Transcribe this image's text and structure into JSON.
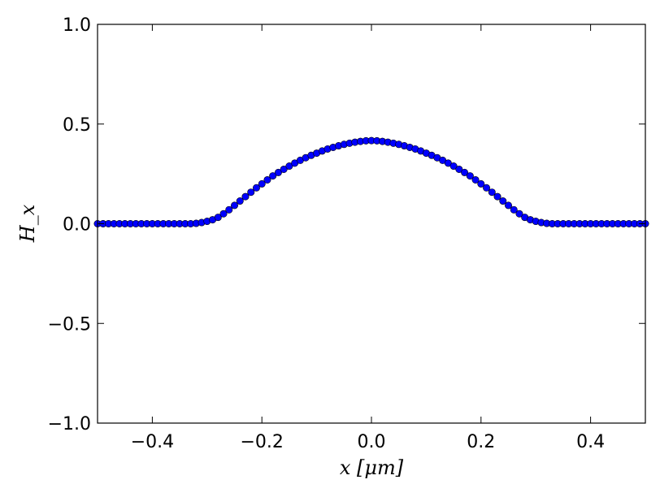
{
  "chart_data": {
    "type": "scatter",
    "title": "",
    "xlabel": "x [μm]",
    "ylabel": "H_x",
    "xlim": [
      -0.5,
      0.5
    ],
    "ylim": [
      -1.0,
      1.0
    ],
    "x_ticks": [
      -0.4,
      -0.2,
      0.0,
      0.2,
      0.4
    ],
    "x_tick_labels": [
      "−0.4",
      "−0.2",
      "0.0",
      "0.2",
      "0.4"
    ],
    "y_ticks": [
      -1.0,
      -0.5,
      0.0,
      0.5,
      1.0
    ],
    "y_tick_labels": [
      "−1.0",
      "−0.5",
      "0.0",
      "0.5",
      "1.0"
    ],
    "grid": false,
    "marker_color": "#0000ff",
    "series": [
      {
        "x": [
          -0.5,
          -0.49,
          -0.48,
          -0.47,
          -0.46,
          -0.45,
          -0.44,
          -0.43,
          -0.42,
          -0.41,
          -0.4,
          -0.39,
          -0.38,
          -0.37,
          -0.36,
          -0.35,
          -0.34,
          -0.33,
          -0.32,
          -0.31,
          -0.3,
          -0.29,
          -0.28,
          -0.27,
          -0.26,
          -0.25,
          -0.24,
          -0.23,
          -0.22,
          -0.21,
          -0.2,
          -0.19,
          -0.18,
          -0.17,
          -0.16,
          -0.15,
          -0.14,
          -0.13,
          -0.12,
          -0.11,
          -0.1,
          -0.09,
          -0.08,
          -0.07,
          -0.06,
          -0.05,
          -0.04,
          -0.03,
          -0.02,
          -0.01,
          0.0,
          0.01,
          0.02,
          0.03,
          0.04,
          0.05,
          0.06,
          0.07,
          0.08,
          0.09,
          0.1,
          0.11,
          0.12,
          0.13,
          0.14,
          0.15,
          0.16,
          0.17,
          0.18,
          0.19,
          0.2,
          0.21,
          0.22,
          0.23,
          0.24,
          0.25,
          0.26,
          0.27,
          0.28,
          0.29,
          0.3,
          0.31,
          0.32,
          0.33,
          0.34,
          0.35,
          0.36,
          0.37,
          0.38,
          0.39,
          0.4,
          0.41,
          0.42,
          0.43,
          0.44,
          0.45,
          0.46,
          0.47,
          0.48,
          0.49,
          0.5
        ],
        "y": [
          0,
          0,
          0,
          0,
          0,
          0,
          0,
          0,
          0,
          0,
          0,
          0,
          0,
          0,
          0,
          0,
          0,
          0,
          0.002,
          0.006,
          0.012,
          0.02,
          0.032,
          0.05,
          0.07,
          0.092,
          0.114,
          0.136,
          0.158,
          0.18,
          0.2,
          0.22,
          0.24,
          0.257,
          0.273,
          0.289,
          0.304,
          0.318,
          0.331,
          0.343,
          0.354,
          0.365,
          0.375,
          0.383,
          0.391,
          0.398,
          0.404,
          0.409,
          0.413,
          0.416,
          0.417,
          0.416,
          0.413,
          0.409,
          0.404,
          0.398,
          0.391,
          0.383,
          0.375,
          0.365,
          0.354,
          0.343,
          0.331,
          0.318,
          0.304,
          0.289,
          0.273,
          0.257,
          0.24,
          0.22,
          0.2,
          0.18,
          0.158,
          0.136,
          0.114,
          0.092,
          0.07,
          0.05,
          0.032,
          0.02,
          0.012,
          0.006,
          0.002,
          0,
          0,
          0,
          0,
          0,
          0,
          0,
          0,
          0,
          0,
          0,
          0,
          0,
          0,
          0,
          0,
          0,
          0
        ]
      }
    ]
  }
}
